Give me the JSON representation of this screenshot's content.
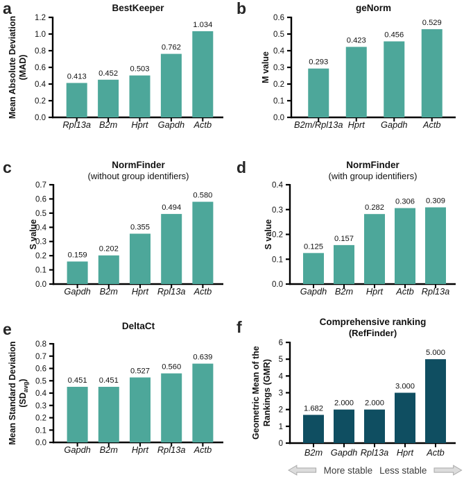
{
  "colors": {
    "bar_teal": "#4DA79A",
    "bar_dark_teal": "#0F4E61",
    "axis_black": "#000000",
    "arrow_fill": "#DCDCDC"
  },
  "footer": {
    "more_stable": "More stable",
    "less_stable": "Less stable"
  },
  "chart_data": [
    {
      "letter": "a",
      "type": "bar",
      "title": "BestKeeper",
      "subtitle": "",
      "subtitle_bold": false,
      "ylabel_lines": [
        "Mean Absolute Deviation",
        "(MAD)"
      ],
      "ylim": [
        0,
        1.2
      ],
      "ytick_step": 0.2,
      "ytick_decimals": 1,
      "grid": false,
      "legend": "none",
      "categories": [
        "Rpl13a",
        "B2m",
        "Hprt",
        "Gapdh",
        "Actb"
      ],
      "values": [
        0.413,
        0.452,
        0.503,
        0.762,
        1.034
      ],
      "value_labels": [
        "0.413",
        "0.452",
        "0.503",
        "0.762",
        "1.034"
      ],
      "bar_color": "#4DA79A"
    },
    {
      "letter": "b",
      "type": "bar",
      "title": "geNorm",
      "subtitle": "",
      "subtitle_bold": false,
      "ylabel_lines": [
        "M value"
      ],
      "ylim": [
        0,
        0.6
      ],
      "ytick_step": 0.1,
      "ytick_decimals": 1,
      "grid": false,
      "legend": "none",
      "categories": [
        "B2m/Rpl13a",
        "Hprt",
        "Gapdh",
        "Actb"
      ],
      "values": [
        0.293,
        0.423,
        0.456,
        0.529
      ],
      "value_labels": [
        "0.293",
        "0.423",
        "0.456",
        "0.529"
      ],
      "bar_color": "#4DA79A"
    },
    {
      "letter": "c",
      "type": "bar",
      "title": "NormFinder",
      "subtitle": "(without group identifiers)",
      "subtitle_bold": false,
      "ylabel_lines": [
        "S value"
      ],
      "ylim": [
        0,
        0.7
      ],
      "ytick_step": 0.1,
      "ytick_decimals": 1,
      "grid": false,
      "legend": "none",
      "categories": [
        "Gapdh",
        "B2m",
        "Hprt",
        "Rpl13a",
        "Actb"
      ],
      "values": [
        0.159,
        0.202,
        0.355,
        0.494,
        0.58
      ],
      "value_labels": [
        "0.159",
        "0.202",
        "0.355",
        "0.494",
        "0.580"
      ],
      "bar_color": "#4DA79A"
    },
    {
      "letter": "d",
      "type": "bar",
      "title": "NormFinder",
      "subtitle": "(with group identifiers)",
      "subtitle_bold": false,
      "ylabel_lines": [
        "S value"
      ],
      "ylim": [
        0,
        0.4
      ],
      "ytick_step": 0.1,
      "ytick_decimals": 1,
      "grid": false,
      "legend": "none",
      "categories": [
        "Gapdh",
        "B2m",
        "Hprt",
        "Actb",
        "Rpl13a"
      ],
      "values": [
        0.125,
        0.157,
        0.282,
        0.306,
        0.309
      ],
      "value_labels": [
        "0.125",
        "0.157",
        "0.282",
        "0.306",
        "0.309"
      ],
      "bar_color": "#4DA79A"
    },
    {
      "letter": "e",
      "type": "bar",
      "title": "DeltaCt",
      "subtitle": "",
      "subtitle_bold": false,
      "ylabel_lines": [
        "Mean Standard Deviation",
        "(SD_{avg})"
      ],
      "ylim": [
        0,
        0.8
      ],
      "ytick_step": 0.1,
      "ytick_decimals": 1,
      "grid": false,
      "legend": "none",
      "categories": [
        "Gapdh",
        "B2m",
        "Hprt",
        "Rpl13a",
        "Actb"
      ],
      "values": [
        0.451,
        0.451,
        0.527,
        0.56,
        0.639
      ],
      "value_labels": [
        "0.451",
        "0.451",
        "0.527",
        "0.560",
        "0.639"
      ],
      "bar_color": "#4DA79A"
    },
    {
      "letter": "f",
      "type": "bar",
      "title": "Comprehensive ranking",
      "subtitle": "(RefFinder)",
      "subtitle_bold": true,
      "ylabel_lines": [
        "Geometric Mean of the",
        "Rankings (GMR)"
      ],
      "ylim": [
        0,
        6
      ],
      "ytick_step": 1,
      "ytick_decimals": 0,
      "grid": false,
      "legend": "none",
      "categories": [
        "B2m",
        "Gapdh",
        "Rpl13a",
        "Hprt",
        "Actb"
      ],
      "values": [
        1.682,
        2.0,
        2.0,
        3.0,
        5.0
      ],
      "value_labels": [
        "1.682",
        "2.000",
        "2.000",
        "3.000",
        "5.000"
      ],
      "bar_color": "#0F4E61"
    }
  ]
}
